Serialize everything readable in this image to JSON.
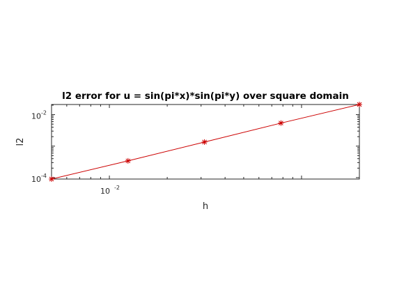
{
  "chart_data": {
    "type": "line",
    "title": "l2 error for u = sin(pi*x)*sin(pi*y) over square domain",
    "xlabel": "h",
    "ylabel": "l2",
    "xscale": "log",
    "yscale": "log",
    "xlim": [
      0.005,
      0.2
    ],
    "ylim": [
      9e-05,
      0.021
    ],
    "grid": false,
    "color": "#cc0000",
    "marker": "asterisk",
    "x_ticks": [
      {
        "base": "10",
        "exp": "-2",
        "value": 0.01
      }
    ],
    "y_ticks": [
      {
        "base": "10",
        "exp": "-2",
        "value": 0.01
      },
      {
        "base": "10",
        "exp": "-4",
        "value": 0.0001
      }
    ],
    "series": [
      {
        "x": [
          0.005,
          0.0125,
          0.03125,
          0.078125,
          0.2
        ],
        "y": [
          9e-05,
          0.00034,
          0.00135,
          0.0054,
          0.021
        ]
      }
    ]
  }
}
